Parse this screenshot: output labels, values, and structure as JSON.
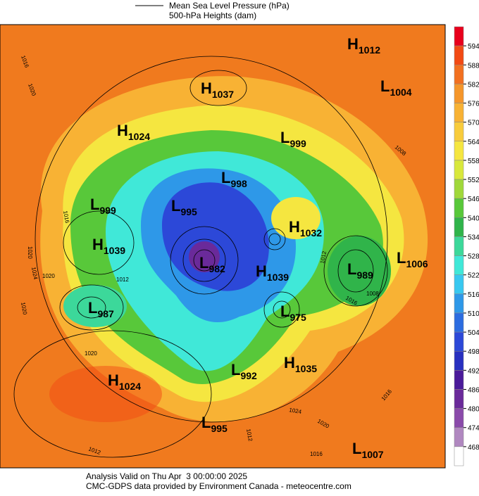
{
  "header": {
    "legend_line1": "Mean Sea Level Pressure (hPa)",
    "legend_line2": "500-hPa Heights (dam)"
  },
  "pressure_centers": [
    {
      "type": "H",
      "value": 1012
    },
    {
      "type": "L",
      "value": 1004
    },
    {
      "type": "H",
      "value": 1037
    },
    {
      "type": "H",
      "value": 1024
    },
    {
      "type": "L",
      "value": 999
    },
    {
      "type": "L",
      "value": 998
    },
    {
      "type": "L",
      "value": 999
    },
    {
      "type": "L",
      "value": 995
    },
    {
      "type": "H",
      "value": 1032
    },
    {
      "type": "H",
      "value": 1039
    },
    {
      "type": "L",
      "value": 982
    },
    {
      "type": "H",
      "value": 1039
    },
    {
      "type": "L",
      "value": 989
    },
    {
      "type": "L",
      "value": 1006
    },
    {
      "type": "L",
      "value": 987
    },
    {
      "type": "L",
      "value": 975
    },
    {
      "type": "H",
      "value": 1035
    },
    {
      "type": "L",
      "value": 992
    },
    {
      "type": "H",
      "value": 1024
    },
    {
      "type": "L",
      "value": 995
    },
    {
      "type": "L",
      "value": 1007
    }
  ],
  "isobar_labels": [
    1016,
    1020,
    1016,
    1020,
    1024,
    1020,
    1012,
    1020,
    1012,
    1016,
    1008,
    1020,
    1024,
    1020,
    1016,
    1012,
    1012,
    1016,
    1008
  ],
  "colorbar": {
    "ticks": [
      594,
      588,
      582,
      576,
      570,
      564,
      558,
      552,
      546,
      540,
      534,
      528,
      522,
      516,
      510,
      504,
      498,
      492,
      486,
      480,
      474,
      468
    ],
    "colors": [
      "#e8001c",
      "#f24a14",
      "#f27020",
      "#f5962a",
      "#f8b234",
      "#f8cc3c",
      "#f5e640",
      "#d8e83c",
      "#a0d83a",
      "#58c83a",
      "#30b44a",
      "#3cd89a",
      "#40e8d8",
      "#38c8f0",
      "#2e98e8",
      "#2c6ce0",
      "#2c48d8",
      "#2830c0",
      "#4a1a9a",
      "#6a2a9a",
      "#8a4aaa",
      "#b088c0",
      "#ffffff"
    ]
  },
  "footer": {
    "line1": "Analysis Valid on Thu Apr  3 00:00:00 2025",
    "line2": "CMC-GDPS data provided by Environment Canada - meteocentre.com"
  }
}
